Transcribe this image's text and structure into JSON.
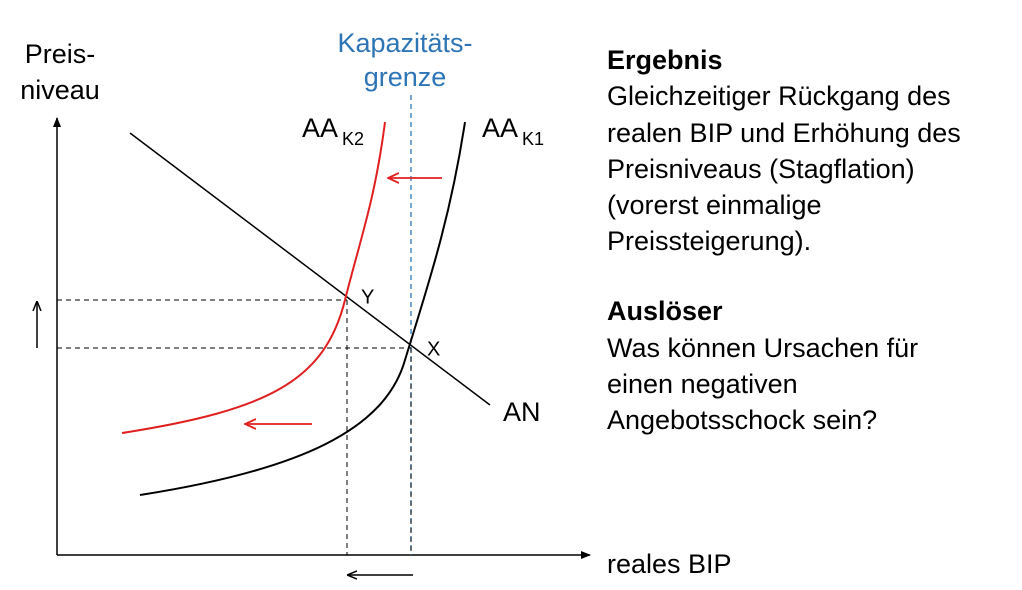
{
  "diagram": {
    "y_axis_label": [
      "Preis-",
      "niveau"
    ],
    "x_axis_label": "reales BIP",
    "capacity_label": [
      "Kapazitäts-",
      "grenze"
    ],
    "curves": {
      "aa_k2": {
        "label": "AA",
        "sub": "K2"
      },
      "aa_k1": {
        "label": "AA",
        "sub": "K1"
      },
      "an": {
        "label": "AN"
      }
    },
    "points": [
      "Y",
      "X"
    ]
  },
  "text": {
    "sections": [
      {
        "heading": "Ergebnis",
        "lines": [
          "Gleichzeitiger Rückgang des",
          "realen BIP und Erhöhung des",
          "Preisniveaus (Stagflation)",
          "(vorerst einmalige",
          "Preissteigerung)."
        ]
      },
      {
        "heading": "Auslöser",
        "lines": [
          "Was können Ursachen für",
          "einen negativen",
          "Angebotsschock sein?"
        ]
      }
    ]
  }
}
